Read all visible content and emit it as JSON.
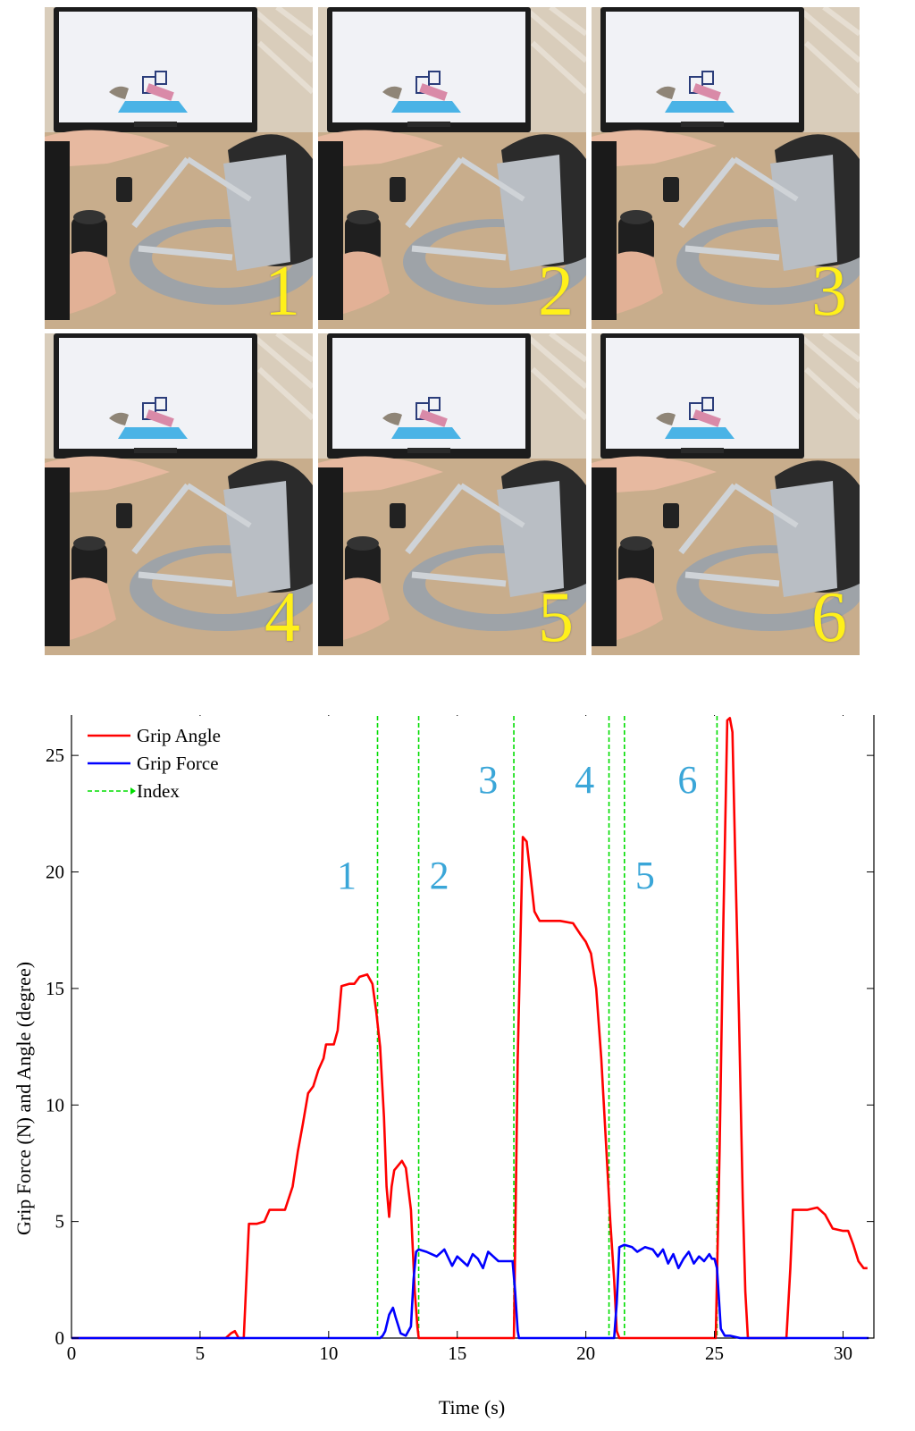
{
  "photo_panels": [
    {
      "label": "1"
    },
    {
      "label": "2"
    },
    {
      "label": "3"
    },
    {
      "label": "4"
    },
    {
      "label": "5"
    },
    {
      "label": "6"
    }
  ],
  "colors": {
    "grip_angle": "#ff0000",
    "grip_force": "#0000ff",
    "index": "#00dd00",
    "annotation": "#3aa6d8",
    "photo_label": "#fff01a"
  },
  "chart_data": {
    "type": "line",
    "xlabel": "Time (s)",
    "ylabel": "Grip Force (N) and Angle (degree)",
    "xlim": [
      0,
      31.2
    ],
    "ylim": [
      0,
      27
    ],
    "xticks": [
      0,
      5,
      10,
      15,
      20,
      25,
      30
    ],
    "yticks": [
      0,
      5,
      10,
      15,
      20,
      25
    ],
    "grid": false,
    "legend_position": "top-left",
    "series": [
      {
        "name": "Grip Angle",
        "x": [
          0,
          6.0,
          6.2,
          6.35,
          6.5,
          6.7,
          6.9,
          7.2,
          7.5,
          7.7,
          8.0,
          8.3,
          8.6,
          8.8,
          9.0,
          9.2,
          9.4,
          9.6,
          9.8,
          9.9,
          10.0,
          10.2,
          10.35,
          10.5,
          10.8,
          11.0,
          11.2,
          11.5,
          11.7,
          11.85,
          12.0,
          12.15,
          12.25,
          12.35,
          12.45,
          12.55,
          12.7,
          12.85,
          13.0,
          13.2,
          13.35,
          13.45,
          13.5,
          17.2,
          17.35,
          17.55,
          17.7,
          17.85,
          18.0,
          18.2,
          18.5,
          19.0,
          19.5,
          19.8,
          20.0,
          20.2,
          20.4,
          20.6,
          20.8,
          20.95,
          21.1,
          21.2,
          21.3,
          21.4,
          25.05,
          25.2,
          25.35,
          25.5,
          25.6,
          25.7,
          25.8,
          25.95,
          26.1,
          26.2,
          26.3,
          27.8,
          27.95,
          28.05,
          28.6,
          29.0,
          29.3,
          29.6,
          30.0,
          30.2,
          30.4,
          30.6,
          30.8,
          30.95
        ],
        "values": [
          0,
          0,
          0.2,
          0.3,
          0,
          0,
          4.9,
          4.9,
          5.0,
          5.5,
          5.5,
          5.5,
          6.5,
          8.0,
          9.2,
          10.5,
          10.8,
          11.5,
          12.0,
          12.6,
          12.6,
          12.6,
          13.2,
          15.1,
          15.2,
          15.2,
          15.5,
          15.6,
          15.2,
          14.0,
          12.5,
          9.5,
          6.5,
          5.2,
          6.5,
          7.2,
          7.4,
          7.6,
          7.3,
          5.5,
          2.0,
          0.5,
          0,
          0,
          12.0,
          21.5,
          21.3,
          19.8,
          18.3,
          17.9,
          17.9,
          17.9,
          17.8,
          17.3,
          17.0,
          16.5,
          15.0,
          12.0,
          8.0,
          5.0,
          2.5,
          0.3,
          0,
          0,
          0,
          8.0,
          18.0,
          26.5,
          26.6,
          26.0,
          21.0,
          14.0,
          6.0,
          2.0,
          0,
          0,
          3.0,
          5.5,
          5.5,
          5.6,
          5.3,
          4.7,
          4.6,
          4.6,
          4.0,
          3.3,
          3.0,
          3.0
        ]
      },
      {
        "name": "Grip Force",
        "x": [
          0,
          12.0,
          12.1,
          12.2,
          12.35,
          12.5,
          12.6,
          12.8,
          13.0,
          13.2,
          13.3,
          13.4,
          13.5,
          13.8,
          14.0,
          14.2,
          14.5,
          14.8,
          15.0,
          15.2,
          15.4,
          15.6,
          15.8,
          16.0,
          16.2,
          16.4,
          16.6,
          16.8,
          17.0,
          17.15,
          17.25,
          17.35,
          17.4,
          21.1,
          21.2,
          21.3,
          21.5,
          21.8,
          22.0,
          22.3,
          22.6,
          22.8,
          23.0,
          23.2,
          23.4,
          23.6,
          23.8,
          24.0,
          24.2,
          24.4,
          24.6,
          24.8,
          24.9,
          25.0,
          25.1,
          25.25,
          25.4,
          25.6,
          26.0,
          31.0
        ],
        "values": [
          0,
          0,
          0.1,
          0.3,
          1.0,
          1.3,
          0.9,
          0.2,
          0.1,
          0.5,
          2.5,
          3.7,
          3.8,
          3.7,
          3.6,
          3.5,
          3.8,
          3.1,
          3.5,
          3.3,
          3.1,
          3.6,
          3.4,
          3.0,
          3.7,
          3.5,
          3.3,
          3.3,
          3.3,
          3.3,
          2.0,
          0.3,
          0,
          0,
          1.5,
          3.9,
          4.0,
          3.9,
          3.7,
          3.9,
          3.8,
          3.5,
          3.8,
          3.2,
          3.6,
          3.0,
          3.4,
          3.7,
          3.2,
          3.5,
          3.3,
          3.6,
          3.4,
          3.4,
          3.0,
          0.4,
          0.1,
          0.1,
          0,
          0
        ]
      }
    ],
    "index_lines": {
      "name": "Index",
      "x": [
        11.9,
        13.5,
        17.2,
        20.9,
        21.5,
        25.1
      ]
    },
    "annotations": [
      {
        "text": "1",
        "x": 10.7,
        "y": 19.3
      },
      {
        "text": "2",
        "x": 14.3,
        "y": 19.3
      },
      {
        "text": "3",
        "x": 16.2,
        "y": 23.4
      },
      {
        "text": "4",
        "x": 19.95,
        "y": 23.4
      },
      {
        "text": "5",
        "x": 22.3,
        "y": 19.3
      },
      {
        "text": "6",
        "x": 23.95,
        "y": 23.4
      }
    ]
  }
}
